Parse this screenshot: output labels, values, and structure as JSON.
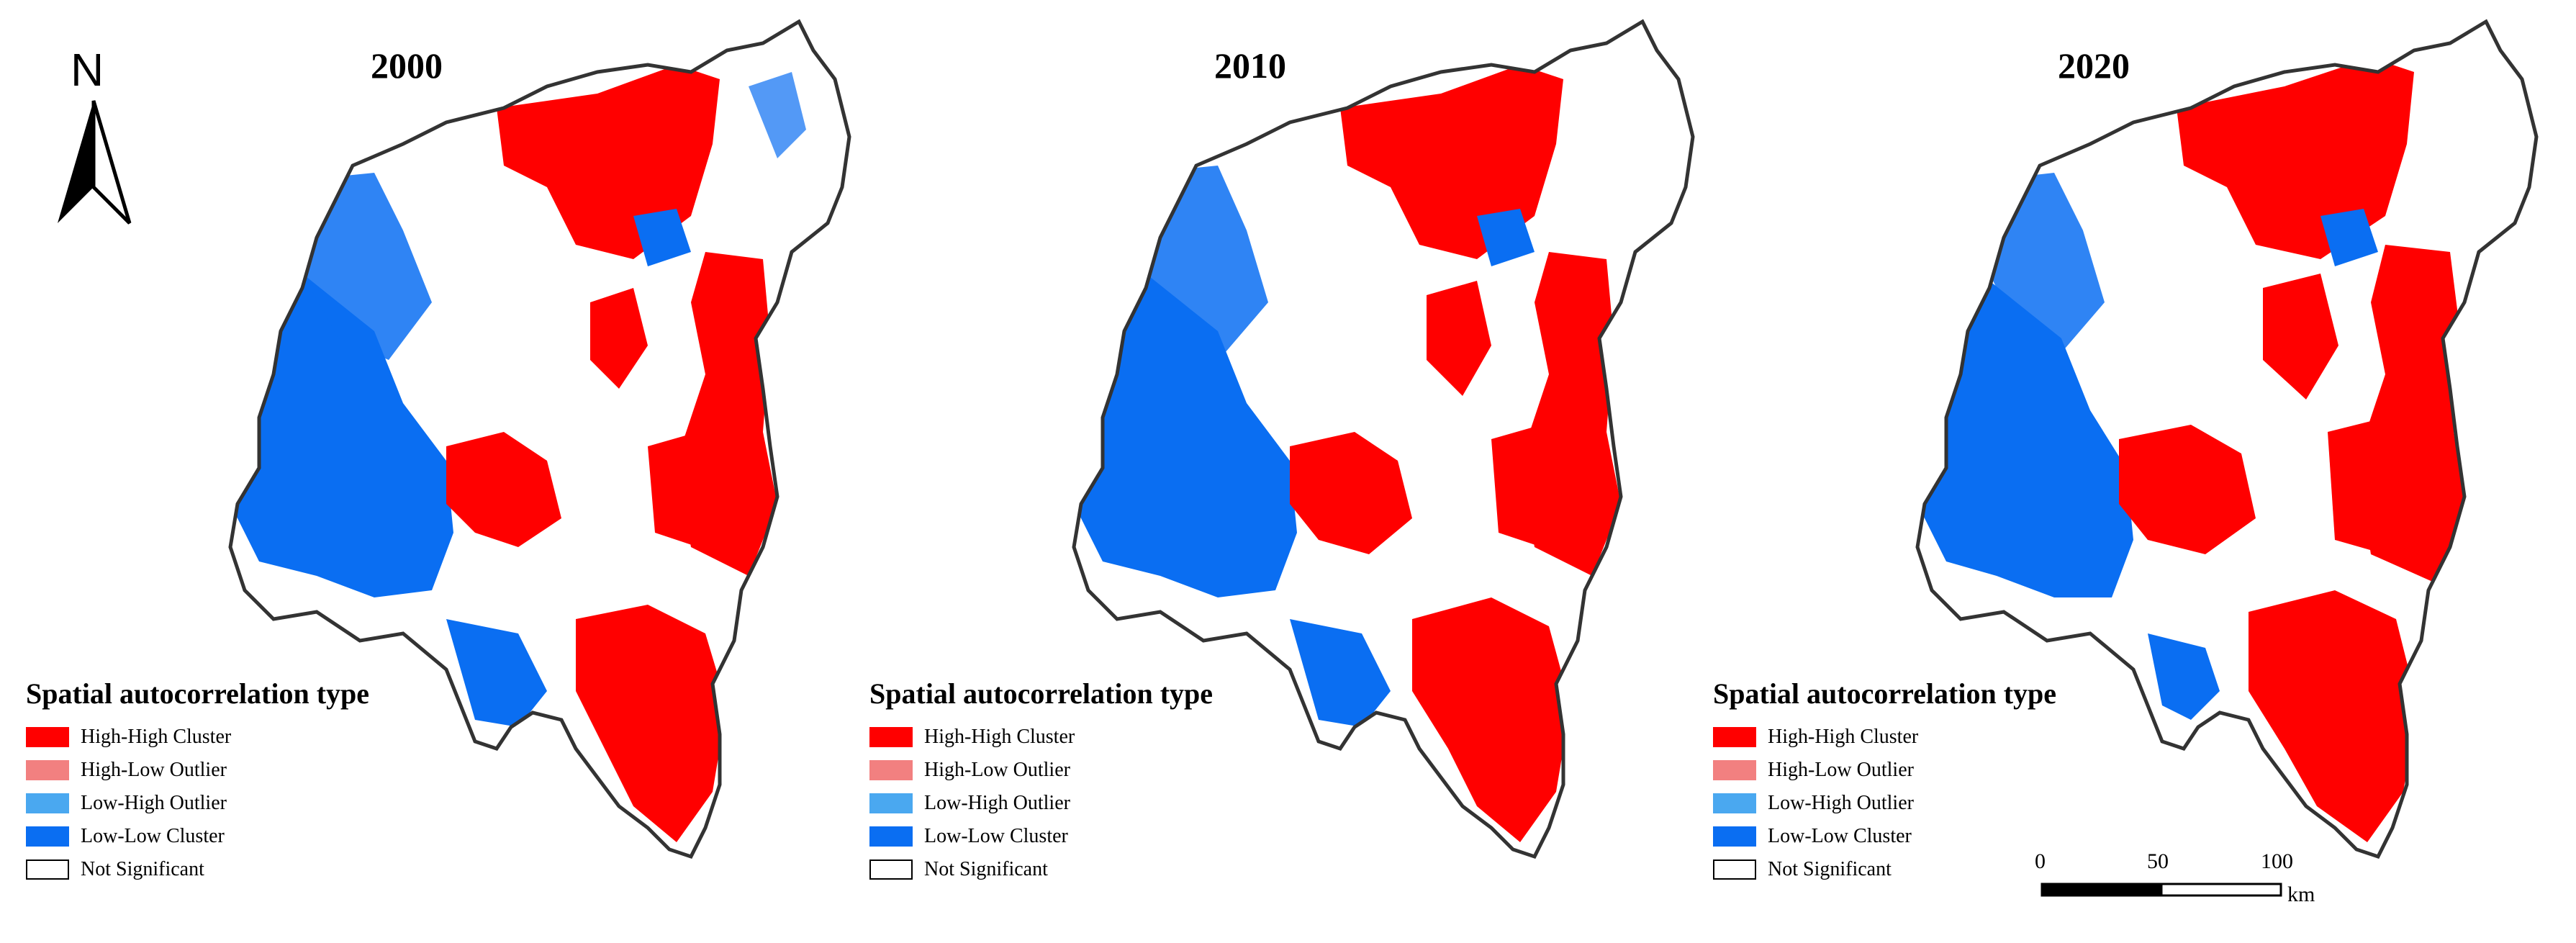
{
  "maps": [
    {
      "year": "2000"
    },
    {
      "year": "2010"
    },
    {
      "year": "2020"
    }
  ],
  "legend": {
    "title": "Spatial autocorrelation type",
    "items": [
      {
        "label": "High-High Cluster",
        "color": "#ff0000"
      },
      {
        "label": "High-Low Outlier",
        "color": "#f28080"
      },
      {
        "label": "Low-High Outlier",
        "color": "#4aa8f0"
      },
      {
        "label": "Low-Low Cluster",
        "color": "#0a6ef2"
      },
      {
        "label": "Not Significant",
        "color": "#ffffff"
      }
    ]
  },
  "north_arrow": {
    "label": "N"
  },
  "scale_bar": {
    "ticks": [
      "0",
      "50",
      "100"
    ],
    "unit": "km"
  },
  "colors": {
    "outline": "#333333",
    "high_high": "#ff0000",
    "low_low": "#0a6ef2"
  }
}
